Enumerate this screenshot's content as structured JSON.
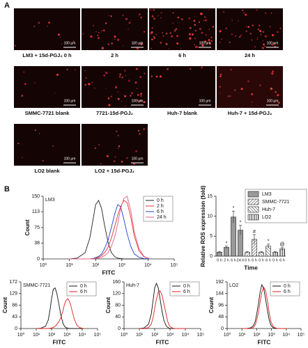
{
  "panel_a": {
    "label": "A",
    "scale_bar": "100 μm",
    "images": [
      {
        "label": "LM3 + 15d-PGJ₂ 0 h"
      },
      {
        "label": "2 h"
      },
      {
        "label": "6 h"
      },
      {
        "label": "24 h"
      },
      {
        "label": "SMMC-7721 blank"
      },
      {
        "label": "7721-15d-PGJ₂"
      },
      {
        "label": "Huh-7 blank"
      },
      {
        "label": "Huh-7 + 15d-PGJ₂"
      },
      {
        "label": "LO2 blank"
      },
      {
        "label": "LO2 + 15d-PGJ₂"
      }
    ]
  },
  "panel_b_label": "B",
  "chart_data": [
    {
      "type": "line",
      "inset_label": "LM3",
      "xlabel": "FITC",
      "ylabel": "Count",
      "xlog": true,
      "legend": "upper right",
      "x": [
        10,
        20,
        40,
        60,
        80,
        100,
        130,
        170,
        220,
        300,
        400,
        550,
        700,
        900,
        1200,
        1600,
        2200,
        3000,
        4500,
        7000,
        12000
      ],
      "xlim": [
        1,
        100000
      ],
      "xticks": [
        {
          "value": 1,
          "label": "10⁰"
        },
        {
          "value": 10,
          "label": "10¹"
        },
        {
          "value": 100,
          "label": "10²"
        },
        {
          "value": 1000,
          "label": "10³"
        },
        {
          "value": 10000,
          "label": "10⁴"
        },
        {
          "value": 100000,
          "label": "10⁵"
        }
      ],
      "ylim": [
        0,
        150
      ],
      "yticks": [
        0,
        38,
        75,
        113,
        150
      ],
      "series": [
        {
          "name": "0 h",
          "color": "#222222",
          "values": [
            0,
            2,
            15,
            50,
            95,
            130,
            140,
            120,
            80,
            40,
            15,
            5,
            2,
            1,
            0,
            0,
            0,
            0,
            0,
            0,
            0
          ]
        },
        {
          "name": "2 h",
          "color": "#e03030",
          "values": [
            0,
            0,
            0,
            0,
            1,
            2,
            4,
            8,
            15,
            28,
            50,
            80,
            105,
            125,
            140,
            135,
            100,
            55,
            20,
            5,
            0
          ]
        },
        {
          "name": "6 h",
          "color": "#2040d0",
          "values": [
            0,
            0,
            0,
            0,
            1,
            3,
            6,
            12,
            25,
            45,
            75,
            110,
            130,
            125,
            95,
            60,
            30,
            12,
            4,
            1,
            0
          ]
        },
        {
          "name": "24 h",
          "color": "#e06080",
          "values": [
            0,
            0,
            0,
            0,
            0,
            1,
            2,
            4,
            8,
            15,
            30,
            55,
            85,
            120,
            145,
            150,
            115,
            65,
            25,
            6,
            0
          ]
        }
      ]
    },
    {
      "type": "bar",
      "xlabel": "Time",
      "ylabel": "Relative ROS expression (fold)",
      "legend": "upper right",
      "categories": [
        "0 h",
        "2 h",
        "6 h",
        "24 h",
        "0 h",
        "6 h",
        "0 h",
        "6 h",
        "0 h",
        "6 h"
      ],
      "ylim": [
        0,
        15
      ],
      "yticks": [
        0,
        5,
        10,
        15
      ],
      "series": [
        {
          "name": "LM3",
          "color": "#999999",
          "pattern": "solid",
          "values": [
            1,
            2.2,
            9.8,
            6.5,
            null,
            null,
            null,
            null,
            null,
            null
          ],
          "errors": [
            0.2,
            0.3,
            1.5,
            1.2,
            null,
            null,
            null,
            null,
            null,
            null
          ],
          "annotations": [
            null,
            "*",
            "*",
            "*",
            null,
            null,
            null,
            null,
            null,
            null
          ]
        },
        {
          "name": "SMMC-7721",
          "color": "#222222",
          "pattern": "diagonal",
          "values": [
            null,
            null,
            null,
            null,
            1,
            4.2,
            null,
            null,
            null,
            null
          ],
          "errors": [
            null,
            null,
            null,
            null,
            0.2,
            1.2,
            null,
            null,
            null,
            null
          ],
          "annotations": [
            null,
            null,
            null,
            null,
            null,
            "#",
            null,
            null,
            null,
            null
          ]
        },
        {
          "name": "Huh-7",
          "color": "#222222",
          "pattern": "backslash",
          "values": [
            null,
            null,
            null,
            null,
            null,
            null,
            1,
            2.5,
            null,
            null
          ],
          "errors": [
            null,
            null,
            null,
            null,
            null,
            null,
            0.2,
            0.5,
            null,
            null
          ],
          "annotations": [
            null,
            null,
            null,
            null,
            null,
            null,
            null,
            "*",
            null,
            null
          ]
        },
        {
          "name": "LO2",
          "color": "#222222",
          "pattern": "vertical",
          "values": [
            null,
            null,
            null,
            null,
            null,
            null,
            null,
            null,
            1,
            1.8
          ],
          "errors": [
            null,
            null,
            null,
            null,
            null,
            null,
            null,
            null,
            0.2,
            0.4
          ],
          "annotations": [
            null,
            null,
            null,
            null,
            null,
            null,
            null,
            null,
            null,
            "@"
          ]
        }
      ]
    },
    {
      "type": "line",
      "inset_label": "SMMC-7721",
      "xlabel": "FITC",
      "ylabel": "Count",
      "xlog": true,
      "legend": "upper right",
      "x": [
        10,
        20,
        40,
        60,
        80,
        100,
        130,
        170,
        220,
        300,
        400,
        550,
        700,
        900,
        1200,
        1600,
        2200,
        3000,
        4500,
        7000,
        12000
      ],
      "xlim": [
        1,
        100000
      ],
      "xticks": [
        {
          "value": 1,
          "label": "10⁰"
        },
        {
          "value": 10,
          "label": "10¹"
        },
        {
          "value": 100,
          "label": "10²"
        },
        {
          "value": 1000,
          "label": "10³"
        },
        {
          "value": 10000,
          "label": "10⁴"
        },
        {
          "value": 100000,
          "label": "10⁵"
        }
      ],
      "ylim": [
        0,
        172
      ],
      "yticks": [
        0,
        43,
        86,
        129,
        172
      ],
      "series": [
        {
          "name": "0 h",
          "color": "#111111",
          "values": [
            0,
            1,
            8,
            30,
            70,
            110,
            145,
            150,
            130,
            90,
            50,
            20,
            8,
            3,
            1,
            0,
            0,
            0,
            0,
            0,
            0
          ]
        },
        {
          "name": "6 h",
          "color": "#e02020",
          "values": [
            0,
            0,
            0,
            0,
            1,
            2,
            4,
            8,
            15,
            25,
            40,
            65,
            90,
            105,
            110,
            95,
            65,
            35,
            12,
            3,
            0
          ]
        }
      ]
    },
    {
      "type": "line",
      "inset_label": "Huh-7",
      "xlabel": "FITC",
      "ylabel": "Count",
      "xlog": true,
      "legend": "upper right",
      "x": [
        10,
        20,
        40,
        60,
        80,
        100,
        130,
        170,
        220,
        300,
        400,
        550,
        700,
        900,
        1200,
        1600,
        2200,
        3000,
        4500,
        7000,
        12000
      ],
      "xlim": [
        1,
        100000
      ],
      "xticks": [
        {
          "value": 1,
          "label": "10⁰"
        },
        {
          "value": 10,
          "label": "10¹"
        },
        {
          "value": 100,
          "label": "10²"
        },
        {
          "value": 1000,
          "label": "10³"
        },
        {
          "value": 10000,
          "label": "10⁴"
        },
        {
          "value": 100000,
          "label": "10⁵"
        }
      ],
      "ylim": [
        0,
        160
      ],
      "yticks": [
        0,
        40,
        80,
        120,
        160
      ],
      "series": [
        {
          "name": "0 h",
          "color": "#111111",
          "values": [
            0,
            2,
            15,
            50,
            100,
            140,
            155,
            140,
            105,
            60,
            28,
            10,
            4,
            1,
            0,
            0,
            0,
            0,
            0,
            0,
            0
          ]
        },
        {
          "name": "6 h",
          "color": "#e02020",
          "values": [
            0,
            0,
            3,
            15,
            40,
            70,
            100,
            125,
            130,
            115,
            85,
            50,
            25,
            10,
            4,
            1,
            0,
            0,
            0,
            0,
            0
          ]
        }
      ]
    },
    {
      "type": "line",
      "inset_label": "LO2",
      "xlabel": "FITC",
      "ylabel": "Count",
      "xlog": true,
      "legend": "upper right",
      "x": [
        10,
        20,
        40,
        60,
        80,
        100,
        130,
        170,
        220,
        300,
        400,
        550,
        700,
        900,
        1200,
        1600,
        2200,
        3000,
        4500,
        7000,
        12000
      ],
      "xlim": [
        1,
        100000
      ],
      "xticks": [
        {
          "value": 1,
          "label": "10⁰"
        },
        {
          "value": 10,
          "label": "10¹"
        },
        {
          "value": 100,
          "label": "10²"
        },
        {
          "value": 1000,
          "label": "10³"
        },
        {
          "value": 10000,
          "label": "10⁴"
        },
        {
          "value": 100000,
          "label": "10⁵"
        }
      ],
      "ylim": [
        0,
        192
      ],
      "yticks": [
        0,
        48,
        96,
        144,
        192
      ],
      "series": [
        {
          "name": "0 h",
          "color": "#111111",
          "values": [
            0,
            0,
            3,
            12,
            30,
            60,
            100,
            150,
            180,
            165,
            120,
            70,
            35,
            15,
            5,
            1,
            0,
            0,
            0,
            0,
            0
          ]
        },
        {
          "name": "6 h",
          "color": "#e02020",
          "values": [
            0,
            0,
            1,
            5,
            15,
            35,
            65,
            110,
            150,
            170,
            155,
            110,
            65,
            30,
            12,
            4,
            1,
            0,
            0,
            0,
            0
          ]
        }
      ]
    }
  ]
}
